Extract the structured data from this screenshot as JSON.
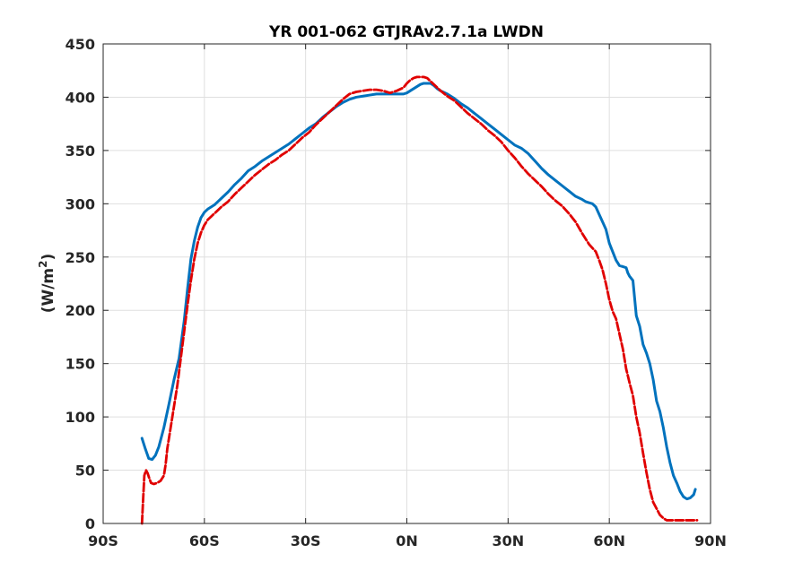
{
  "chart_data": {
    "type": "line",
    "title": "YR 001-062 GTJRAv2.7.1a LWDN",
    "xlabel": "",
    "ylabel_main": "(W/m",
    "ylabel_sup": "2",
    "ylabel_end": ")",
    "xlim": [
      -90,
      90
    ],
    "ylim": [
      0,
      450
    ],
    "xticks": [
      -90,
      -60,
      -30,
      0,
      30,
      60,
      90
    ],
    "xtick_labels": [
      "90S",
      "60S",
      "30S",
      "0N",
      "30N",
      "60N",
      "90N"
    ],
    "yticks": [
      0,
      50,
      100,
      150,
      200,
      250,
      300,
      350,
      400,
      450
    ],
    "ytick_labels": [
      "0",
      "50",
      "100",
      "150",
      "200",
      "250",
      "300",
      "350",
      "400",
      "450"
    ],
    "grid": true,
    "series": [
      {
        "color": "#0072BD",
        "style": "solid",
        "x": [
          -78.5,
          -77.5,
          -76.5,
          -75.5,
          -74.5,
          -73.5,
          -72,
          -70.5,
          -69,
          -67.5,
          -66,
          -65,
          -64,
          -63,
          -62,
          -61,
          -60,
          -59,
          -58,
          -57,
          -56,
          -55,
          -53,
          -51,
          -49,
          -47,
          -45,
          -43,
          -41,
          -39,
          -37,
          -35,
          -33,
          -31,
          -29,
          -27,
          -25,
          -23,
          -21,
          -19,
          -17,
          -15,
          -13,
          -11,
          -9,
          -7,
          -5,
          -3,
          -1,
          0,
          1,
          2,
          3,
          4,
          5,
          6,
          7,
          8,
          9,
          10,
          12,
          14,
          16,
          18,
          20,
          22,
          24,
          26,
          28,
          30,
          32,
          34,
          36,
          38,
          40,
          42,
          44,
          46,
          48,
          50,
          52,
          53,
          54,
          55,
          56,
          57,
          58,
          59,
          60,
          61,
          62,
          63,
          64,
          65,
          65.5,
          66,
          66.5,
          67,
          68,
          69,
          70,
          71,
          72,
          73,
          74,
          75,
          76,
          77,
          78,
          79,
          80,
          81,
          82,
          83,
          84,
          85,
          85.5
        ],
        "y": [
          80,
          70,
          61,
          60,
          64,
          72,
          90,
          112,
          135,
          155,
          190,
          220,
          248,
          265,
          278,
          287,
          292,
          295,
          297,
          299,
          302,
          305,
          311,
          318,
          324,
          331,
          335,
          340,
          344,
          348,
          352,
          356,
          361,
          366,
          371,
          375,
          381,
          386,
          391,
          395,
          398,
          400,
          401,
          402,
          403,
          403,
          403,
          403,
          403,
          404,
          406,
          408,
          410,
          412,
          413,
          413,
          413,
          411,
          408,
          406,
          403,
          399,
          394,
          390,
          385,
          380,
          375,
          370,
          365,
          360,
          355,
          352,
          347,
          340,
          333,
          327,
          322,
          317,
          312,
          307,
          304,
          302,
          301,
          300,
          297,
          290,
          283,
          276,
          263,
          255,
          247,
          242,
          241,
          240,
          235,
          232,
          230,
          228,
          195,
          185,
          168,
          160,
          150,
          135,
          115,
          105,
          90,
          72,
          57,
          45,
          38,
          30,
          25,
          23,
          24,
          27,
          32
        ]
      },
      {
        "color": "#E00000",
        "style": "dashed",
        "x": [
          -78.5,
          -78.2,
          -77.8,
          -77.3,
          -76.8,
          -76.3,
          -75.8,
          -75,
          -74,
          -73,
          -72,
          -71.5,
          -71,
          -70,
          -69,
          -68,
          -67,
          -66,
          -65,
          -64,
          -63,
          -62,
          -61,
          -60,
          -59,
          -58,
          -57,
          -56,
          -55,
          -53,
          -51,
          -49,
          -47,
          -45,
          -43,
          -41,
          -39,
          -37,
          -35,
          -33,
          -31,
          -29,
          -27,
          -25,
          -23,
          -21,
          -19,
          -17,
          -15,
          -13,
          -11,
          -9,
          -7,
          -5,
          -3,
          -1,
          0,
          1,
          2,
          3,
          4,
          5,
          6,
          7,
          8,
          9,
          10,
          12,
          14,
          16,
          18,
          20,
          22,
          24,
          26,
          28,
          30,
          32,
          34,
          36,
          38,
          40,
          42,
          44,
          46,
          48,
          50,
          52,
          54,
          56,
          57,
          58,
          59,
          60,
          61,
          62,
          63,
          64,
          65,
          66,
          67,
          68,
          69,
          70,
          71,
          72,
          73,
          74,
          75,
          76,
          77,
          78,
          79,
          80,
          81,
          82,
          83,
          84,
          85,
          86
        ],
        "y": [
          0,
          20,
          45,
          50,
          47,
          42,
          38,
          37,
          38,
          40,
          45,
          55,
          70,
          90,
          110,
          130,
          155,
          180,
          205,
          228,
          248,
          263,
          273,
          280,
          285,
          288,
          291,
          294,
          297,
          302,
          309,
          315,
          321,
          327,
          332,
          337,
          341,
          346,
          350,
          356,
          362,
          367,
          374,
          380,
          386,
          392,
          398,
          403,
          405,
          406,
          407,
          407,
          406,
          404,
          406,
          409,
          413,
          416,
          418,
          419,
          419,
          419,
          418,
          415,
          412,
          409,
          406,
          401,
          397,
          391,
          385,
          380,
          375,
          369,
          364,
          358,
          350,
          343,
          335,
          328,
          322,
          316,
          309,
          303,
          298,
          291,
          283,
          272,
          262,
          255,
          247,
          238,
          225,
          210,
          199,
          192,
          178,
          164,
          145,
          132,
          120,
          100,
          85,
          66,
          48,
          32,
          20,
          14,
          8,
          5,
          3,
          3,
          3,
          3,
          3,
          3,
          3,
          3,
          3,
          3
        ]
      }
    ]
  }
}
